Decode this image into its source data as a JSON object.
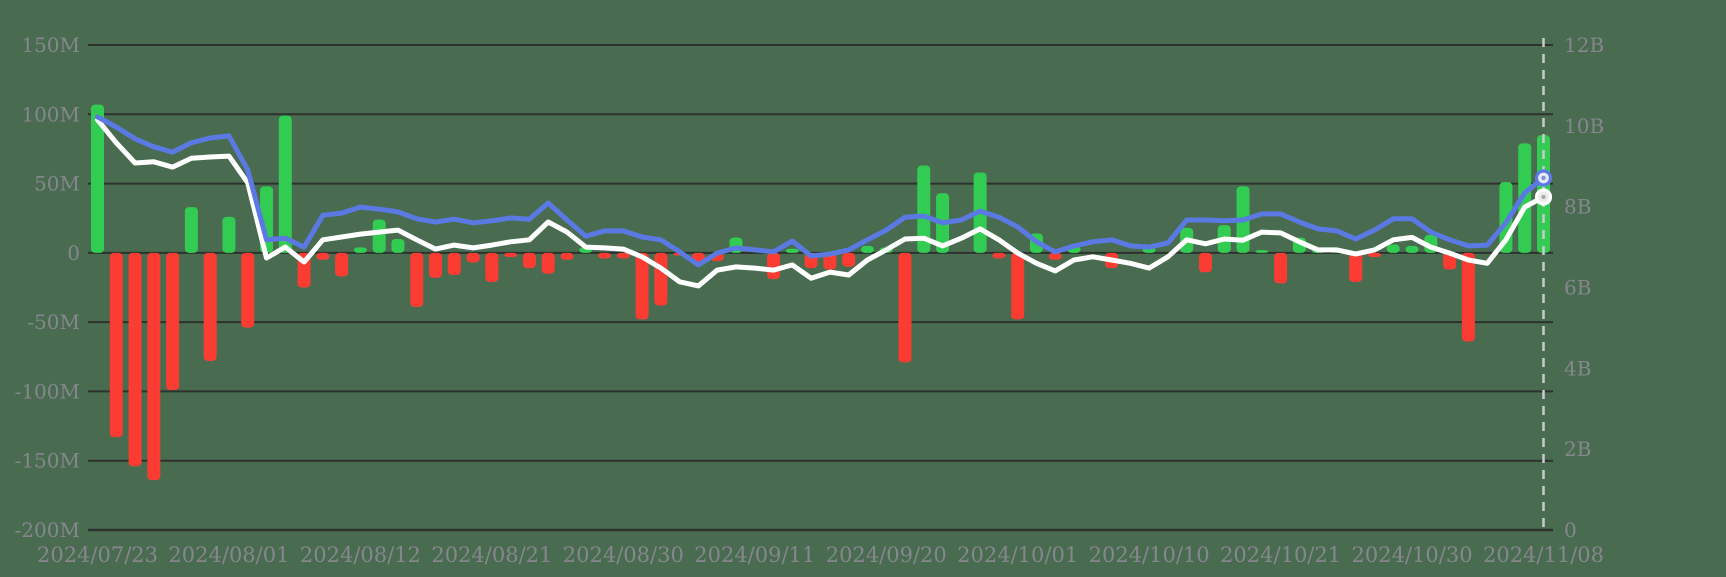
{
  "chart_data": {
    "type": "mixed-bar-line",
    "title": "",
    "grid": true,
    "legend": false,
    "colors": {
      "background": "#496c51",
      "gridline": "#2d322e",
      "axis_label": "#86868e",
      "bar_positive": "#33cc52",
      "bar_negative": "#fa3c32",
      "line_blue": "#5b79e3",
      "line_white": "#ffffff",
      "cursor_dash": "#c9cccb",
      "marker_blue_fill": "#e7ebf8",
      "marker_blue_dot": "#7d8fd0",
      "marker_white_fill": "#ececec",
      "marker_white_dot": "#a9aaa9"
    },
    "left_axis": {
      "side": "left",
      "unit": "M",
      "tick_labels": [
        "150M",
        "100M",
        "50M",
        "0",
        "-50M",
        "-100M",
        "-150M",
        "-200M"
      ],
      "tick_values": [
        150,
        100,
        50,
        0,
        -50,
        -100,
        -150,
        -200
      ],
      "range": [
        -200,
        150
      ]
    },
    "right_axis": {
      "side": "right",
      "unit": "B",
      "tick_labels": [
        "12B",
        "10B",
        "8B",
        "6B",
        "4B",
        "2B",
        "0"
      ],
      "tick_values": [
        12,
        10,
        8,
        6,
        4,
        2,
        0
      ],
      "range": [
        0,
        12
      ]
    },
    "x_axis": {
      "tick_labels": [
        "2024/07/23",
        "2024/08/01",
        "2024/08/12",
        "2024/08/21",
        "2024/08/30",
        "2024/09/11",
        "2024/09/20",
        "2024/10/01",
        "2024/10/10",
        "2024/10/21",
        "2024/10/30",
        "2024/11/08"
      ],
      "tick_indices": [
        0,
        7,
        14,
        21,
        28,
        35,
        42,
        49,
        56,
        63,
        70,
        77
      ]
    },
    "dates": [
      "2024/07/23",
      "2024/07/24",
      "2024/07/25",
      "2024/07/26",
      "2024/07/29",
      "2024/07/30",
      "2024/07/31",
      "2024/08/01",
      "2024/08/02",
      "2024/08/05",
      "2024/08/06",
      "2024/08/07",
      "2024/08/08",
      "2024/08/09",
      "2024/08/12",
      "2024/08/13",
      "2024/08/14",
      "2024/08/15",
      "2024/08/16",
      "2024/08/19",
      "2024/08/20",
      "2024/08/21",
      "2024/08/22",
      "2024/08/23",
      "2024/08/26",
      "2024/08/27",
      "2024/08/28",
      "2024/08/29",
      "2024/08/30",
      "2024/09/03",
      "2024/09/04",
      "2024/09/05",
      "2024/09/06",
      "2024/09/09",
      "2024/09/10",
      "2024/09/11",
      "2024/09/12",
      "2024/09/13",
      "2024/09/16",
      "2024/09/17",
      "2024/09/18",
      "2024/09/19",
      "2024/09/20",
      "2024/09/23",
      "2024/09/24",
      "2024/09/25",
      "2024/09/26",
      "2024/09/27",
      "2024/09/30",
      "2024/10/01",
      "2024/10/02",
      "2024/10/03",
      "2024/10/04",
      "2024/10/07",
      "2024/10/08",
      "2024/10/09",
      "2024/10/10",
      "2024/10/11",
      "2024/10/14",
      "2024/10/15",
      "2024/10/16",
      "2024/10/17",
      "2024/10/18",
      "2024/10/21",
      "2024/10/22",
      "2024/10/23",
      "2024/10/24",
      "2024/10/25",
      "2024/10/28",
      "2024/10/29",
      "2024/10/30",
      "2024/10/31",
      "2024/11/01",
      "2024/11/04",
      "2024/11/05",
      "2024/11/06",
      "2024/11/07",
      "2024/11/08"
    ],
    "bar_series": {
      "name": "daily-net-flow",
      "axis": "left",
      "unit": "M",
      "values": [
        107,
        -133,
        -154,
        -164,
        -99,
        33,
        -78,
        26,
        -54,
        48,
        99,
        -25,
        -5,
        -17,
        4,
        24,
        10,
        -39,
        -18,
        -16,
        -7,
        -21,
        -3,
        -11,
        -15,
        -5,
        4,
        -4,
        -4,
        -48,
        -38,
        -2,
        -9,
        -6,
        11,
        0,
        -19,
        3,
        -11,
        -12,
        -10,
        5,
        4,
        -79,
        63,
        43,
        0,
        58,
        -4,
        -48,
        14,
        -5,
        5,
        0,
        -11,
        0,
        4,
        0,
        18,
        -14,
        20,
        48,
        2,
        -22,
        11,
        2,
        2,
        -21,
        -3,
        6,
        5,
        13,
        -12,
        -64,
        0,
        51,
        79,
        85
      ]
    },
    "line_series": [
      {
        "name": "blue-line",
        "axis": "right",
        "unit": "B",
        "color": "#5b79e3",
        "end_marker": true,
        "values": [
          10.22,
          9.97,
          9.68,
          9.48,
          9.35,
          9.58,
          9.7,
          9.75,
          8.91,
          7.18,
          7.22,
          7.0,
          7.79,
          7.84,
          7.99,
          7.94,
          7.87,
          7.7,
          7.62,
          7.69,
          7.6,
          7.65,
          7.72,
          7.69,
          8.09,
          7.67,
          7.27,
          7.4,
          7.4,
          7.25,
          7.18,
          6.88,
          6.56,
          6.85,
          6.98,
          6.93,
          6.88,
          7.15,
          6.78,
          6.83,
          6.93,
          7.18,
          7.42,
          7.74,
          7.77,
          7.6,
          7.67,
          7.89,
          7.74,
          7.5,
          7.13,
          6.88,
          7.03,
          7.13,
          7.18,
          7.03,
          7.0,
          7.1,
          7.67,
          7.67,
          7.65,
          7.67,
          7.82,
          7.82,
          7.62,
          7.45,
          7.4,
          7.2,
          7.42,
          7.7,
          7.7,
          7.37,
          7.18,
          7.03,
          7.05,
          7.6,
          8.34,
          8.71
        ]
      },
      {
        "name": "white-line",
        "axis": "right",
        "unit": "B",
        "color": "#ffffff",
        "end_marker": true,
        "values": [
          10.15,
          9.58,
          9.08,
          9.11,
          8.98,
          9.2,
          9.23,
          9.25,
          8.59,
          6.73,
          7.0,
          6.63,
          7.18,
          7.25,
          7.32,
          7.37,
          7.42,
          7.18,
          6.95,
          7.05,
          6.98,
          7.05,
          7.13,
          7.18,
          7.62,
          7.37,
          7.0,
          6.98,
          6.95,
          6.76,
          6.48,
          6.14,
          6.04,
          6.43,
          6.51,
          6.48,
          6.43,
          6.56,
          6.23,
          6.38,
          6.31,
          6.68,
          6.93,
          7.2,
          7.22,
          7.03,
          7.22,
          7.45,
          7.18,
          6.85,
          6.6,
          6.41,
          6.68,
          6.76,
          6.68,
          6.6,
          6.48,
          6.76,
          7.18,
          7.08,
          7.2,
          7.17,
          7.37,
          7.35,
          7.13,
          6.93,
          6.93,
          6.83,
          6.93,
          7.18,
          7.24,
          7.0,
          6.85,
          6.68,
          6.6,
          7.18,
          7.99,
          8.24
        ]
      }
    ],
    "cursor": {
      "index": 77,
      "style": "dashed-vertical"
    }
  }
}
